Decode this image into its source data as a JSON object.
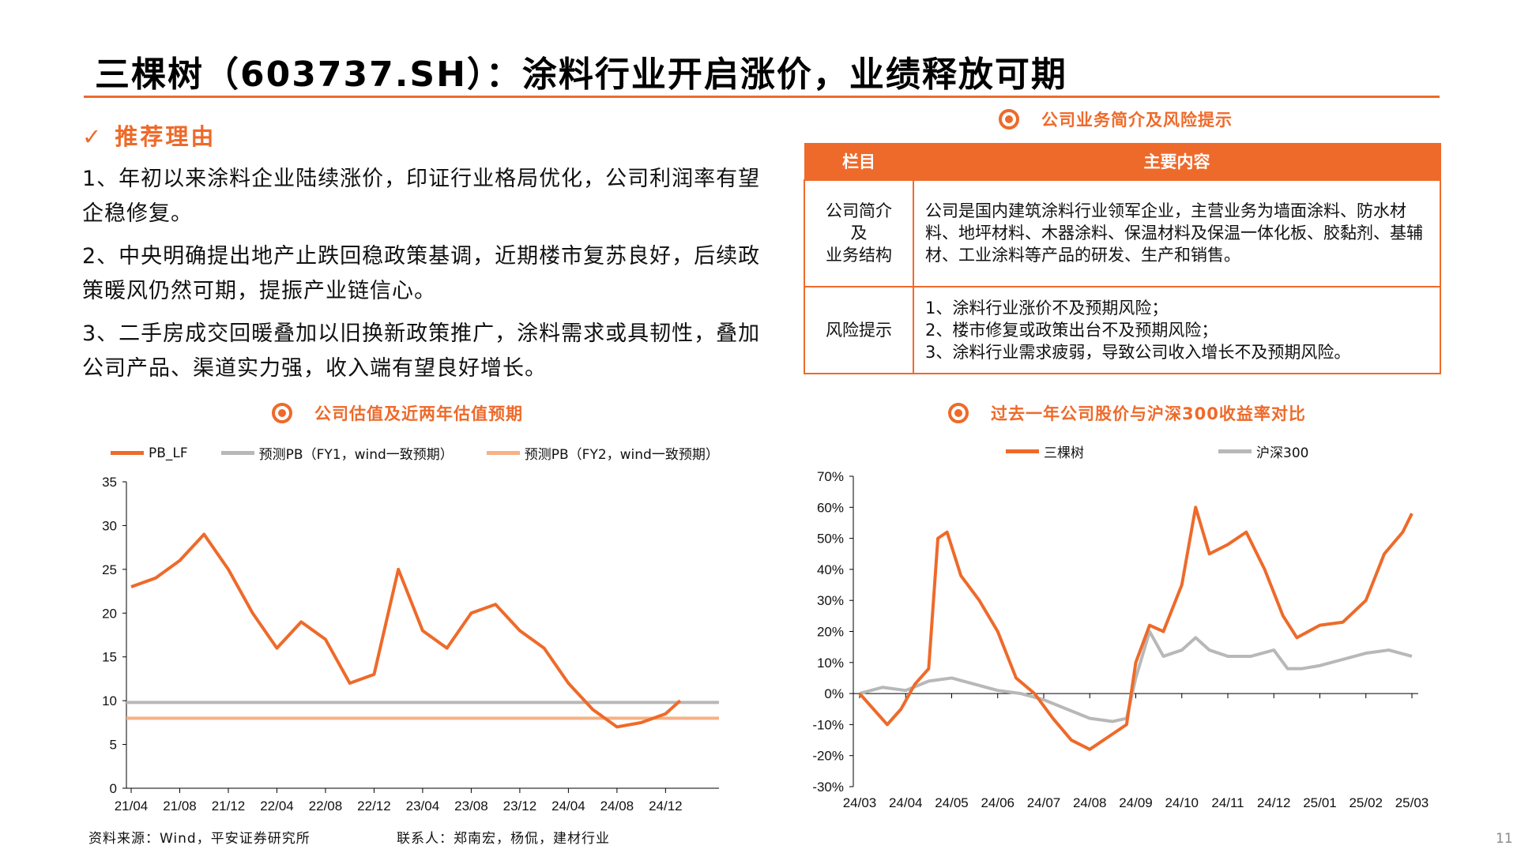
{
  "title": "三棵树（603737.SH）：涂料行业开启涨价，业绩释放可期",
  "reasons": {
    "heading": "推荐理由",
    "items": [
      "1、年初以来涂料企业陆续涨价，印证行业格局优化，公司利润率有望企稳修复。",
      "2、中央明确提出地产止跌回稳政策基调，近期楼市复苏良好，后续政策暖风仍然可期，提振产业链信心。",
      "3、二手房成交回暖叠加以旧换新政策推广，涂料需求或具韧性，叠加公司产品、渠道实力强，收入端有望良好增长。"
    ]
  },
  "table_block": {
    "caption": "公司业务简介及风险提示",
    "headers": [
      "栏目",
      "主要内容"
    ],
    "rows": [
      {
        "label": "公司简介\n及\n业务结构",
        "content": "公司是国内建筑涂料行业领军企业，主营业务为墙面涂料、防水材料、地坪材料、木器涂料、保温材料及保温一体化板、胶黏剂、基辅材、工业涂料等产品的研发、生产和销售。"
      },
      {
        "label": "风险提示",
        "content": "1、涂料行业涨价不及预期风险；\n2、楼市修复或政策出台不及预期风险；\n3、涂料行业需求疲弱，导致公司收入增长不及预期风险。"
      }
    ]
  },
  "footer": {
    "source": "资料来源：Wind，平安证券研究所",
    "contact": "联系人：郑南宏，杨侃，建材行业",
    "page": "11"
  },
  "colors": {
    "accent": "#ee6a2a",
    "gray": "#b8b8b8",
    "light_orange": "#f7b183"
  },
  "chart_data": [
    {
      "type": "line",
      "title": "公司估值及近两年估值预期",
      "x_ticks": [
        "21/04",
        "21/08",
        "21/12",
        "22/04",
        "22/08",
        "22/12",
        "23/04",
        "23/08",
        "23/12",
        "24/04",
        "24/08",
        "24/12"
      ],
      "yticks": [
        "0",
        "5",
        "10",
        "15",
        "20",
        "25",
        "30",
        "35"
      ],
      "ylim": [
        0,
        35
      ],
      "legend_position": "top",
      "series": [
        {
          "name": "PB_LF",
          "color": "#ee6a2a",
          "x": [
            0,
            0.5,
            1,
            1.5,
            2,
            2.5,
            3,
            3.5,
            4,
            4.5,
            5,
            5.5,
            6,
            6.5,
            7,
            7.5,
            8,
            8.5,
            9,
            9.5,
            10,
            10.5,
            11,
            11.3
          ],
          "values": [
            23,
            24,
            26,
            29,
            25,
            20,
            16,
            19,
            17,
            12,
            13,
            25,
            18,
            16,
            20,
            21,
            18,
            16,
            12,
            9,
            7,
            7.5,
            8.5,
            10
          ]
        },
        {
          "name": "预测PB（FY1，wind一致预期）",
          "color": "#b8b8b8",
          "values": [
            9.8,
            9.8
          ]
        },
        {
          "name": "预测PB（FY2，wind一致预期）",
          "color": "#f7b183",
          "values": [
            8,
            8
          ]
        }
      ]
    },
    {
      "type": "line",
      "title": "过去一年公司股价与沪深300收益率对比",
      "x_ticks": [
        "24/03",
        "24/04",
        "24/05",
        "24/06",
        "24/07",
        "24/08",
        "24/09",
        "24/10",
        "24/11",
        "24/12",
        "25/01",
        "25/02",
        "25/03"
      ],
      "yticks": [
        "70%",
        "60%",
        "50%",
        "40%",
        "30%",
        "20%",
        "10%",
        "0%",
        "-10%",
        "-20%",
        "-30%"
      ],
      "ylim": [
        -30,
        70
      ],
      "legend_position": "top",
      "series": [
        {
          "name": "三棵树",
          "color": "#ee6a2a",
          "x": [
            0,
            0.3,
            0.6,
            0.9,
            1.2,
            1.5,
            1.7,
            1.9,
            2.2,
            2.6,
            3.0,
            3.4,
            3.8,
            4.2,
            4.6,
            5.0,
            5.4,
            5.8,
            6.0,
            6.3,
            6.6,
            7.0,
            7.3,
            7.6,
            8.0,
            8.4,
            8.8,
            9.2,
            9.5,
            10.0,
            10.5,
            11.0,
            11.4,
            11.8,
            12.0
          ],
          "values": [
            0,
            -5,
            -10,
            -5,
            3,
            8,
            50,
            52,
            38,
            30,
            20,
            5,
            0,
            -8,
            -15,
            -18,
            -14,
            -10,
            10,
            22,
            20,
            35,
            60,
            45,
            48,
            52,
            40,
            25,
            18,
            22,
            23,
            30,
            45,
            52,
            58
          ]
        },
        {
          "name": "沪深300",
          "color": "#b8b8b8",
          "x": [
            0,
            0.5,
            1.0,
            1.5,
            2.0,
            2.5,
            3.0,
            3.5,
            4.0,
            4.5,
            5.0,
            5.5,
            5.8,
            6.0,
            6.3,
            6.6,
            7.0,
            7.3,
            7.6,
            8.0,
            8.5,
            9.0,
            9.3,
            9.6,
            10.0,
            10.5,
            11.0,
            11.5,
            12.0
          ],
          "values": [
            0,
            2,
            1,
            4,
            5,
            3,
            1,
            0,
            -2,
            -5,
            -8,
            -9,
            -8,
            5,
            20,
            12,
            14,
            18,
            14,
            12,
            12,
            14,
            8,
            8,
            9,
            11,
            13,
            14,
            12
          ]
        }
      ]
    }
  ]
}
